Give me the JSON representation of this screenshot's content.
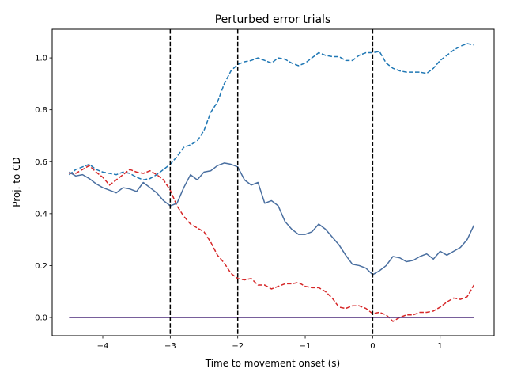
{
  "chart_data": {
    "type": "line",
    "title": "Perturbed error trials",
    "xlabel": "Time to movement onset (s)",
    "ylabel": "Proj. to CD",
    "xlim": [
      -4.75,
      1.8
    ],
    "ylim": [
      -0.07,
      1.11
    ],
    "xticks": [
      -4,
      -3,
      -2,
      -1,
      0,
      1
    ],
    "xtick_labels": [
      "−4",
      "−3",
      "−2",
      "−1",
      "0",
      "1"
    ],
    "yticks": [
      0.0,
      0.2,
      0.4,
      0.6,
      0.8,
      1.0
    ],
    "ytick_labels": [
      "0.0",
      "0.2",
      "0.4",
      "0.6",
      "0.8",
      "1.0"
    ],
    "grid": false,
    "legend": "none",
    "vlines": [
      {
        "x": -3,
        "color": "#000000",
        "style": "dashed"
      },
      {
        "x": -2,
        "color": "#000000",
        "style": "dashed"
      },
      {
        "x": 0,
        "color": "#000000",
        "style": "dashed"
      }
    ],
    "series": [
      {
        "color": "#1f77b4",
        "style": "dashed",
        "x": [
          -4.5,
          -4.4,
          -4.3,
          -4.2,
          -4.1,
          -4.0,
          -3.9,
          -3.8,
          -3.7,
          -3.6,
          -3.5,
          -3.4,
          -3.3,
          -3.2,
          -3.1,
          -3.0,
          -2.9,
          -2.8,
          -2.7,
          -2.6,
          -2.5,
          -2.4,
          -2.3,
          -2.2,
          -2.1,
          -2.0,
          -1.9,
          -1.8,
          -1.7,
          -1.6,
          -1.5,
          -1.4,
          -1.3,
          -1.2,
          -1.1,
          -1.0,
          -0.9,
          -0.8,
          -0.7,
          -0.6,
          -0.5,
          -0.4,
          -0.3,
          -0.2,
          -0.1,
          0.0,
          0.1,
          0.2,
          0.3,
          0.4,
          0.5,
          0.6,
          0.7,
          0.8,
          0.9,
          1.0,
          1.1,
          1.2,
          1.3,
          1.4,
          1.5
        ],
        "y": [
          0.55,
          0.57,
          0.58,
          0.59,
          0.57,
          0.56,
          0.555,
          0.55,
          0.56,
          0.555,
          0.54,
          0.53,
          0.535,
          0.55,
          0.57,
          0.59,
          0.62,
          0.655,
          0.665,
          0.68,
          0.72,
          0.79,
          0.83,
          0.9,
          0.95,
          0.975,
          0.985,
          0.99,
          1.0,
          0.99,
          0.98,
          1.0,
          0.995,
          0.98,
          0.97,
          0.98,
          1.0,
          1.02,
          1.01,
          1.005,
          1.005,
          0.99,
          0.99,
          1.01,
          1.02,
          1.02,
          1.025,
          0.98,
          0.96,
          0.95,
          0.945,
          0.945,
          0.945,
          0.94,
          0.96,
          0.99,
          1.01,
          1.03,
          1.045,
          1.055,
          1.05
        ]
      },
      {
        "color": "#d62728",
        "style": "dashed",
        "x": [
          -4.5,
          -4.4,
          -4.3,
          -4.2,
          -4.1,
          -4.0,
          -3.9,
          -3.8,
          -3.7,
          -3.6,
          -3.5,
          -3.4,
          -3.3,
          -3.2,
          -3.1,
          -3.0,
          -2.9,
          -2.8,
          -2.7,
          -2.6,
          -2.5,
          -2.4,
          -2.3,
          -2.2,
          -2.1,
          -2.0,
          -1.9,
          -1.8,
          -1.7,
          -1.6,
          -1.5,
          -1.4,
          -1.3,
          -1.2,
          -1.1,
          -1.0,
          -0.9,
          -0.8,
          -0.7,
          -0.6,
          -0.5,
          -0.4,
          -0.3,
          -0.2,
          -0.1,
          0.0,
          0.1,
          0.2,
          0.3,
          0.4,
          0.5,
          0.6,
          0.7,
          0.8,
          0.9,
          1.0,
          1.1,
          1.2,
          1.3,
          1.4,
          1.5
        ],
        "y": [
          0.555,
          0.555,
          0.57,
          0.585,
          0.56,
          0.54,
          0.51,
          0.53,
          0.55,
          0.57,
          0.56,
          0.555,
          0.565,
          0.55,
          0.53,
          0.49,
          0.43,
          0.39,
          0.36,
          0.345,
          0.33,
          0.29,
          0.24,
          0.21,
          0.17,
          0.15,
          0.145,
          0.15,
          0.125,
          0.125,
          0.11,
          0.12,
          0.13,
          0.13,
          0.135,
          0.12,
          0.115,
          0.115,
          0.1,
          0.075,
          0.04,
          0.035,
          0.045,
          0.045,
          0.035,
          0.015,
          0.02,
          0.01,
          -0.015,
          0.0,
          0.01,
          0.01,
          0.02,
          0.02,
          0.025,
          0.04,
          0.06,
          0.075,
          0.07,
          0.08,
          0.125
        ]
      },
      {
        "color": "#4a6fa0",
        "style": "solid",
        "x": [
          -4.5,
          -4.4,
          -4.3,
          -4.2,
          -4.1,
          -4.0,
          -3.9,
          -3.8,
          -3.7,
          -3.6,
          -3.5,
          -3.4,
          -3.3,
          -3.2,
          -3.1,
          -3.0,
          -2.9,
          -2.8,
          -2.7,
          -2.6,
          -2.5,
          -2.4,
          -2.3,
          -2.2,
          -2.1,
          -2.0,
          -1.9,
          -1.8,
          -1.7,
          -1.6,
          -1.5,
          -1.4,
          -1.3,
          -1.2,
          -1.1,
          -1.0,
          -0.9,
          -0.8,
          -0.7,
          -0.6,
          -0.5,
          -0.4,
          -0.3,
          -0.2,
          -0.1,
          0.0,
          0.1,
          0.2,
          0.3,
          0.4,
          0.5,
          0.6,
          0.7,
          0.8,
          0.9,
          1.0,
          1.1,
          1.2,
          1.3,
          1.4,
          1.5
        ],
        "y": [
          0.56,
          0.545,
          0.55,
          0.535,
          0.515,
          0.5,
          0.49,
          0.48,
          0.5,
          0.495,
          0.485,
          0.52,
          0.5,
          0.48,
          0.45,
          0.43,
          0.44,
          0.5,
          0.55,
          0.53,
          0.56,
          0.565,
          0.585,
          0.595,
          0.59,
          0.58,
          0.53,
          0.51,
          0.52,
          0.44,
          0.45,
          0.43,
          0.37,
          0.34,
          0.32,
          0.32,
          0.33,
          0.36,
          0.34,
          0.31,
          0.28,
          0.24,
          0.205,
          0.2,
          0.19,
          0.165,
          0.18,
          0.2,
          0.235,
          0.23,
          0.215,
          0.22,
          0.235,
          0.245,
          0.225,
          0.255,
          0.24,
          0.255,
          0.27,
          0.3,
          0.355
        ]
      },
      {
        "color": "#4b2a7a",
        "style": "solid",
        "x": [
          -4.5,
          1.5
        ],
        "y": [
          0.0,
          0.0
        ]
      }
    ]
  }
}
